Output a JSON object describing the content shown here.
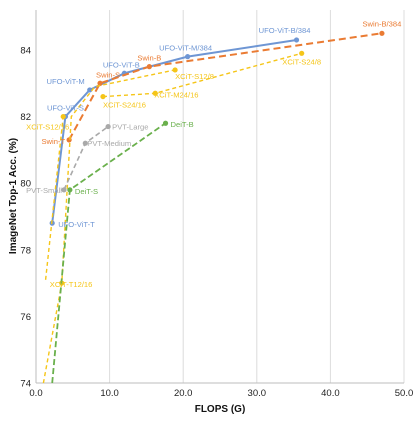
{
  "chart_data": {
    "type": "line",
    "xlabel": "FLOPS (G)",
    "ylabel": "ImageNet Top-1 Acc. (%)",
    "xlim": [
      0,
      50
    ],
    "ylim": [
      74,
      85.2
    ],
    "xticks": [
      0,
      10,
      20,
      30,
      40,
      50
    ],
    "xtick_labels": [
      "0.0",
      "10.0",
      "20.0",
      "30.0",
      "40.0",
      "50.0"
    ],
    "yticks": [
      74,
      76,
      78,
      80,
      82,
      84
    ],
    "ytick_labels": [
      "74",
      "76",
      "78",
      "80",
      "82",
      "84"
    ],
    "grid": "vertical",
    "legend": "none",
    "series": [
      {
        "color": "#6e96d4",
        "dash": "",
        "width": 2,
        "points": [
          {
            "x": 2.2,
            "y": 78.8,
            "label": "UFO-ViT-T",
            "dx": 6,
            "dy": 4,
            "anchor": "start"
          },
          {
            "x": 4.0,
            "y": 82.0,
            "label": "UFO-ViT-S",
            "dx": 0,
            "dy": -6,
            "anchor": "middle"
          },
          {
            "x": 7.3,
            "y": 82.8,
            "label": "UFO-ViT-M",
            "dx": -5,
            "dy": -6,
            "anchor": "end"
          },
          {
            "x": 12.0,
            "y": 83.3,
            "label": "UFO-ViT-B",
            "dx": -3,
            "dy": -6,
            "anchor": "middle"
          },
          {
            "x": 20.6,
            "y": 83.8,
            "label": "UFO-ViT-M/384",
            "dx": -2,
            "dy": -6,
            "anchor": "middle"
          },
          {
            "x": 35.4,
            "y": 84.3,
            "label": "UFO-ViT-B/384",
            "dx": -12,
            "dy": -7,
            "anchor": "middle"
          }
        ]
      },
      {
        "color": "#ea7b33",
        "dash": "7,4",
        "width": 2,
        "points": [
          {
            "x": 4.5,
            "y": 81.3,
            "label": "Swin-T",
            "dx": -4,
            "dy": 4,
            "anchor": "end"
          },
          {
            "x": 8.7,
            "y": 83.0,
            "label": "Swin-S",
            "dx": -4,
            "dy": -6,
            "anchor": "start"
          },
          {
            "x": 15.4,
            "y": 83.5,
            "label": "Swin-B",
            "dx": 0,
            "dy": -6,
            "anchor": "middle"
          },
          {
            "x": 47.0,
            "y": 84.5,
            "label": "Swin-B/384",
            "dx": 0,
            "dy": -7,
            "anchor": "middle"
          }
        ]
      },
      {
        "color": "#f5c518",
        "dash": "4,3",
        "width": 1.4,
        "points": [
          {
            "x": 1.3,
            "y": 77.1,
            "label": "",
            "dx": 0,
            "dy": 0,
            "anchor": "start"
          },
          {
            "x": 3.7,
            "y": 82.0,
            "label": "XCiT-S12/16",
            "dx": 6,
            "dy": 13,
            "anchor": "end"
          }
        ]
      },
      {
        "color": "#f5c518",
        "dash": "4,3",
        "width": 1.4,
        "points": [
          {
            "x": 9.1,
            "y": 82.6,
            "label": "XCiT-S24/16",
            "dx": 0,
            "dy": 11,
            "anchor": "start"
          },
          {
            "x": 16.2,
            "y": 82.7,
            "label": "XCiT-M24/16",
            "dx": -1,
            "dy": 4,
            "anchor": "start"
          },
          {
            "x": 36.1,
            "y": 83.9,
            "label": "XCiT-S24/8",
            "dx": 0,
            "dy": 11,
            "anchor": "middle"
          }
        ]
      },
      {
        "color": "#f5c518",
        "dash": "4,3",
        "width": 1.4,
        "points": [
          {
            "x": 1.0,
            "y": 74.0,
            "label": "",
            "dx": 0,
            "dy": 0,
            "anchor": "start"
          },
          {
            "x": 3.5,
            "y": 77.0,
            "label": "XCiT-T12/16",
            "dx": -12,
            "dy": 4,
            "anchor": "start"
          },
          {
            "x": 4.8,
            "y": 82.0,
            "label": "",
            "dx": 0,
            "dy": 0,
            "anchor": "start"
          },
          {
            "x": 8.0,
            "y": 82.9,
            "label": "",
            "dx": 0,
            "dy": 0,
            "anchor": "start"
          },
          {
            "x": 18.9,
            "y": 83.4,
            "label": "XCiT-S12/8",
            "dx": 0,
            "dy": 9,
            "anchor": "start"
          }
        ]
      },
      {
        "color": "#a9a9a9",
        "dash": "5,3",
        "width": 1.6,
        "points": [
          {
            "x": 3.8,
            "y": 79.8,
            "label": "PVT-Small",
            "dx": -2,
            "dy": 3,
            "anchor": "end"
          },
          {
            "x": 6.7,
            "y": 81.2,
            "label": "PVT-Medium",
            "dx": 2,
            "dy": 3,
            "anchor": "start"
          },
          {
            "x": 9.8,
            "y": 81.7,
            "label": "PVT-Large",
            "dx": 4,
            "dy": 3,
            "anchor": "start"
          }
        ]
      },
      {
        "color": "#6ab04c",
        "dash": "6,3",
        "width": 1.8,
        "points": [
          {
            "x": 2.2,
            "y": 74.0,
            "label": "",
            "dx": 0,
            "dy": 0,
            "anchor": "start"
          },
          {
            "x": 4.6,
            "y": 79.8,
            "label": "DeiT-S",
            "dx": 5,
            "dy": 4,
            "anchor": "start"
          },
          {
            "x": 17.6,
            "y": 81.8,
            "label": "DeiT-B",
            "dx": 5,
            "dy": 4,
            "anchor": "start"
          }
        ]
      }
    ]
  }
}
